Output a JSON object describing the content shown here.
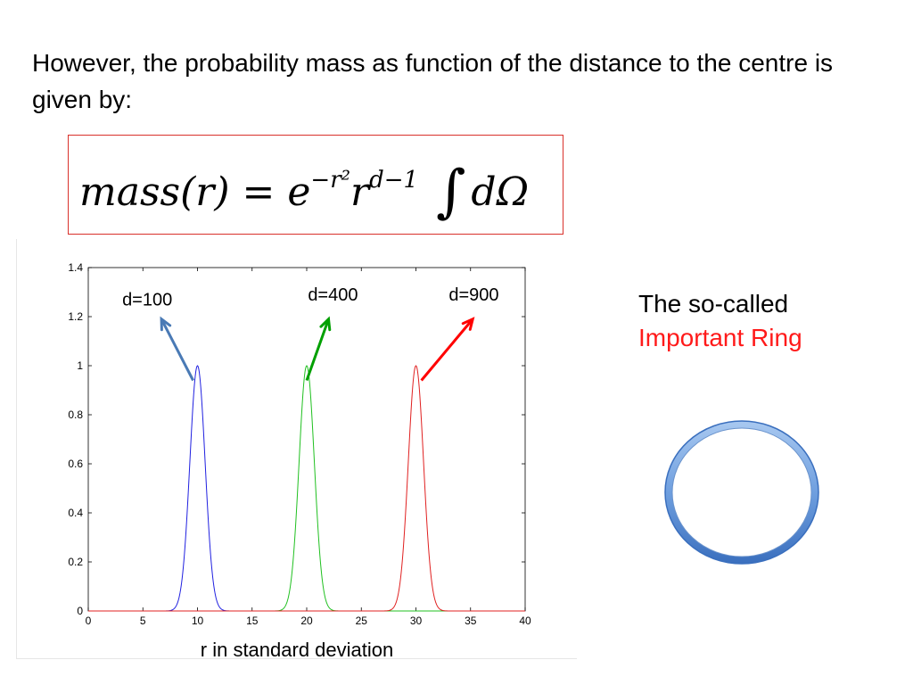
{
  "intro_text": "However, the probability mass as function of the distance to the centre is given by:",
  "formula": {
    "lhs": "mass(r)",
    "eq": "=",
    "base_e": "e",
    "exp_e": "−r²",
    "base_r": "r",
    "exp_r": "d−1",
    "integral": "∫",
    "d_omega": "dΩ"
  },
  "side": {
    "line1": "The so-called",
    "line2": "Important Ring"
  },
  "colors": {
    "formula_border": "#d9312b",
    "highlight_text": "#ff1a1a",
    "ring_fill": "#5b8fd6",
    "ring_edge": "#3a6fbe"
  },
  "chart_data": {
    "type": "line",
    "xlabel": "r in standard deviation",
    "ylabel": "",
    "xlim": [
      0,
      40
    ],
    "ylim": [
      0,
      1.4
    ],
    "xticks": [
      0,
      5,
      10,
      15,
      20,
      25,
      30,
      35,
      40
    ],
    "yticks": [
      0,
      0.2,
      0.4,
      0.6,
      0.8,
      1,
      1.2,
      1.4
    ],
    "ytick_labels": [
      "0",
      "0.2",
      "0.4",
      "0.6",
      "0.8",
      "1",
      "1.2",
      "1.4"
    ],
    "grid": false,
    "series": [
      {
        "name": "d=100",
        "color": "#2020e0",
        "peak_x": 10,
        "peak_y": 1,
        "half_width": 0.7
      },
      {
        "name": "d=400",
        "color": "#20c020",
        "peak_x": 20,
        "peak_y": 1,
        "half_width": 0.7
      },
      {
        "name": "d=900",
        "color": "#e02020",
        "peak_x": 30,
        "peak_y": 1,
        "half_width": 0.7
      }
    ],
    "annotations": [
      {
        "text": "d=100",
        "color": "#4a7ab5",
        "from": [
          9.6,
          0.94
        ],
        "to": [
          6.7,
          1.19
        ],
        "label_at": [
          5.4,
          1.245
        ]
      },
      {
        "text": "d=400",
        "color": "#00a000",
        "from": [
          20,
          0.94
        ],
        "to": [
          22,
          1.19
        ],
        "label_at": [
          22.4,
          1.265
        ]
      },
      {
        "text": "d=900",
        "color": "#ff0000",
        "from": [
          30.5,
          0.94
        ],
        "to": [
          35.2,
          1.19
        ],
        "label_at": [
          35.3,
          1.265
        ]
      }
    ]
  }
}
